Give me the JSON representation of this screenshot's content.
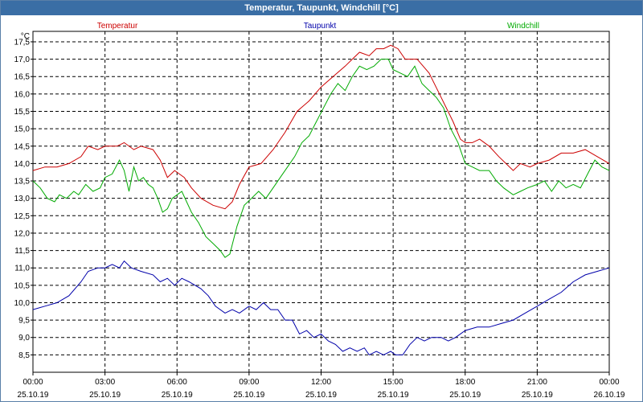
{
  "window": {
    "title": "Temperatur, Taupunkt, Windchill [°C]"
  },
  "chart_data": {
    "type": "line",
    "title": "Temperatur, Taupunkt, Windchill [°C]",
    "ylabel": "°C",
    "ylim": [
      8.0,
      17.8
    ],
    "yticks": [
      "8,5",
      "9,0",
      "9,5",
      "10,0",
      "10,5",
      "11,0",
      "11,5",
      "12,0",
      "12,5",
      "13,0",
      "13,5",
      "14,0",
      "14,5",
      "15,0",
      "15,5",
      "16,0",
      "16,5",
      "17,0",
      "17,5"
    ],
    "xticks": [
      {
        "time": "00:00",
        "date": "25.10.19"
      },
      {
        "time": "03:00",
        "date": "25.10.19"
      },
      {
        "time": "06:00",
        "date": "25.10.19"
      },
      {
        "time": "09:00",
        "date": "25.10.19"
      },
      {
        "time": "12:00",
        "date": "25.10.19"
      },
      {
        "time": "15:00",
        "date": "25.10.19"
      },
      {
        "time": "18:00",
        "date": "25.10.19"
      },
      {
        "time": "21:00",
        "date": "25.10.19"
      },
      {
        "time": "00:00",
        "date": "26.10.19"
      }
    ],
    "x_unit": "hours",
    "grid": true,
    "legend_position": "top",
    "series": [
      {
        "name": "Temperatur",
        "color": "#cc0000",
        "points": [
          [
            0,
            13.8
          ],
          [
            0.5,
            13.9
          ],
          [
            1,
            13.9
          ],
          [
            1.5,
            14.0
          ],
          [
            2,
            14.2
          ],
          [
            2.3,
            14.5
          ],
          [
            2.7,
            14.4
          ],
          [
            3,
            14.5
          ],
          [
            3.5,
            14.5
          ],
          [
            3.8,
            14.6
          ],
          [
            4.2,
            14.4
          ],
          [
            4.5,
            14.5
          ],
          [
            5,
            14.4
          ],
          [
            5.3,
            14.1
          ],
          [
            5.6,
            13.6
          ],
          [
            5.9,
            13.8
          ],
          [
            6.3,
            13.6
          ],
          [
            6.6,
            13.3
          ],
          [
            7,
            13.0
          ],
          [
            7.5,
            12.8
          ],
          [
            8,
            12.7
          ],
          [
            8.3,
            12.9
          ],
          [
            8.6,
            13.4
          ],
          [
            9,
            13.9
          ],
          [
            9.5,
            14.0
          ],
          [
            10,
            14.4
          ],
          [
            10.5,
            14.9
          ],
          [
            11,
            15.5
          ],
          [
            11.5,
            15.8
          ],
          [
            12,
            16.2
          ],
          [
            12.5,
            16.5
          ],
          [
            13,
            16.8
          ],
          [
            13.3,
            17.0
          ],
          [
            13.6,
            17.2
          ],
          [
            14,
            17.1
          ],
          [
            14.3,
            17.3
          ],
          [
            14.6,
            17.3
          ],
          [
            14.9,
            17.4
          ],
          [
            15.2,
            17.3
          ],
          [
            15.5,
            17.0
          ],
          [
            16,
            17.0
          ],
          [
            16.5,
            16.6
          ],
          [
            17,
            15.9
          ],
          [
            17.5,
            15.2
          ],
          [
            17.8,
            14.7
          ],
          [
            18,
            14.6
          ],
          [
            18.3,
            14.6
          ],
          [
            18.6,
            14.7
          ],
          [
            19,
            14.5
          ],
          [
            19.4,
            14.2
          ],
          [
            19.7,
            14.0
          ],
          [
            20,
            13.8
          ],
          [
            20.3,
            14.0
          ],
          [
            20.7,
            13.9
          ],
          [
            21,
            14.0
          ],
          [
            21.5,
            14.1
          ],
          [
            22,
            14.3
          ],
          [
            22.5,
            14.3
          ],
          [
            23,
            14.4
          ],
          [
            23.5,
            14.2
          ],
          [
            24,
            14.0
          ]
        ]
      },
      {
        "name": "Taupunkt",
        "color": "#0000aa",
        "points": [
          [
            0,
            9.8
          ],
          [
            0.5,
            9.9
          ],
          [
            1,
            10.0
          ],
          [
            1.5,
            10.2
          ],
          [
            2,
            10.6
          ],
          [
            2.3,
            10.9
          ],
          [
            2.7,
            11.0
          ],
          [
            3,
            11.0
          ],
          [
            3.3,
            11.1
          ],
          [
            3.6,
            11.0
          ],
          [
            3.8,
            11.2
          ],
          [
            4.1,
            11.0
          ],
          [
            4.5,
            10.9
          ],
          [
            5,
            10.8
          ],
          [
            5.3,
            10.6
          ],
          [
            5.6,
            10.7
          ],
          [
            5.9,
            10.5
          ],
          [
            6.2,
            10.7
          ],
          [
            6.5,
            10.6
          ],
          [
            7,
            10.4
          ],
          [
            7.3,
            10.2
          ],
          [
            7.6,
            9.9
          ],
          [
            8,
            9.7
          ],
          [
            8.3,
            9.8
          ],
          [
            8.6,
            9.7
          ],
          [
            9,
            9.9
          ],
          [
            9.3,
            9.8
          ],
          [
            9.6,
            10.0
          ],
          [
            9.9,
            9.8
          ],
          [
            10.2,
            9.8
          ],
          [
            10.5,
            9.5
          ],
          [
            10.8,
            9.5
          ],
          [
            11.1,
            9.1
          ],
          [
            11.4,
            9.2
          ],
          [
            11.7,
            9.0
          ],
          [
            12,
            9.1
          ],
          [
            12.3,
            8.9
          ],
          [
            12.6,
            8.8
          ],
          [
            12.9,
            8.6
          ],
          [
            13.2,
            8.7
          ],
          [
            13.5,
            8.6
          ],
          [
            13.8,
            8.7
          ],
          [
            14,
            8.5
          ],
          [
            14.3,
            8.6
          ],
          [
            14.6,
            8.5
          ],
          [
            14.9,
            8.6
          ],
          [
            15.1,
            8.5
          ],
          [
            15.4,
            8.5
          ],
          [
            15.7,
            8.8
          ],
          [
            16,
            9.0
          ],
          [
            16.3,
            8.9
          ],
          [
            16.6,
            9.0
          ],
          [
            17,
            9.0
          ],
          [
            17.3,
            8.9
          ],
          [
            17.6,
            9.0
          ],
          [
            18,
            9.2
          ],
          [
            18.5,
            9.3
          ],
          [
            19,
            9.3
          ],
          [
            19.5,
            9.4
          ],
          [
            20,
            9.5
          ],
          [
            20.5,
            9.7
          ],
          [
            21,
            9.9
          ],
          [
            21.5,
            10.1
          ],
          [
            22,
            10.3
          ],
          [
            22.5,
            10.6
          ],
          [
            23,
            10.8
          ],
          [
            23.5,
            10.9
          ],
          [
            24,
            11.0
          ]
        ]
      },
      {
        "name": "Windchill",
        "color": "#00aa00",
        "points": [
          [
            0,
            13.5
          ],
          [
            0.3,
            13.3
          ],
          [
            0.6,
            13.0
          ],
          [
            0.9,
            12.9
          ],
          [
            1.1,
            13.1
          ],
          [
            1.4,
            13.0
          ],
          [
            1.7,
            13.2
          ],
          [
            1.9,
            13.1
          ],
          [
            2.2,
            13.4
          ],
          [
            2.5,
            13.2
          ],
          [
            2.8,
            13.3
          ],
          [
            3,
            13.6
          ],
          [
            3.3,
            13.7
          ],
          [
            3.6,
            14.1
          ],
          [
            3.8,
            13.8
          ],
          [
            4,
            13.2
          ],
          [
            4.2,
            13.9
          ],
          [
            4.4,
            13.5
          ],
          [
            4.6,
            13.6
          ],
          [
            4.8,
            13.4
          ],
          [
            5,
            13.3
          ],
          [
            5.2,
            13.0
          ],
          [
            5.4,
            12.6
          ],
          [
            5.6,
            12.7
          ],
          [
            5.8,
            13.0
          ],
          [
            6,
            13.1
          ],
          [
            6.2,
            13.2
          ],
          [
            6.4,
            12.9
          ],
          [
            6.6,
            12.6
          ],
          [
            6.9,
            12.3
          ],
          [
            7.2,
            11.9
          ],
          [
            7.5,
            11.7
          ],
          [
            7.8,
            11.5
          ],
          [
            8,
            11.3
          ],
          [
            8.2,
            11.4
          ],
          [
            8.5,
            12.2
          ],
          [
            8.8,
            12.8
          ],
          [
            9.1,
            13.0
          ],
          [
            9.4,
            13.2
          ],
          [
            9.7,
            13.0
          ],
          [
            10,
            13.3
          ],
          [
            10.3,
            13.6
          ],
          [
            10.6,
            13.9
          ],
          [
            10.9,
            14.2
          ],
          [
            11.2,
            14.6
          ],
          [
            11.5,
            14.8
          ],
          [
            11.8,
            15.2
          ],
          [
            12.1,
            15.6
          ],
          [
            12.4,
            16.0
          ],
          [
            12.7,
            16.3
          ],
          [
            13,
            16.1
          ],
          [
            13.3,
            16.5
          ],
          [
            13.6,
            16.8
          ],
          [
            13.9,
            16.7
          ],
          [
            14.2,
            16.8
          ],
          [
            14.5,
            17.0
          ],
          [
            14.8,
            17.0
          ],
          [
            15,
            16.7
          ],
          [
            15.3,
            16.6
          ],
          [
            15.6,
            16.5
          ],
          [
            15.9,
            16.8
          ],
          [
            16.2,
            16.3
          ],
          [
            16.5,
            16.1
          ],
          [
            16.8,
            15.9
          ],
          [
            17.1,
            15.6
          ],
          [
            17.4,
            15.0
          ],
          [
            17.7,
            14.6
          ],
          [
            18,
            14.0
          ],
          [
            18.3,
            13.9
          ],
          [
            18.6,
            13.8
          ],
          [
            19,
            13.8
          ],
          [
            19.3,
            13.5
          ],
          [
            19.6,
            13.3
          ],
          [
            20,
            13.1
          ],
          [
            20.3,
            13.2
          ],
          [
            20.6,
            13.3
          ],
          [
            21,
            13.4
          ],
          [
            21.3,
            13.5
          ],
          [
            21.6,
            13.2
          ],
          [
            21.9,
            13.5
          ],
          [
            22.2,
            13.3
          ],
          [
            22.5,
            13.4
          ],
          [
            22.8,
            13.3
          ],
          [
            23.1,
            13.7
          ],
          [
            23.4,
            14.1
          ],
          [
            23.7,
            13.9
          ],
          [
            24,
            13.8
          ]
        ]
      }
    ]
  }
}
